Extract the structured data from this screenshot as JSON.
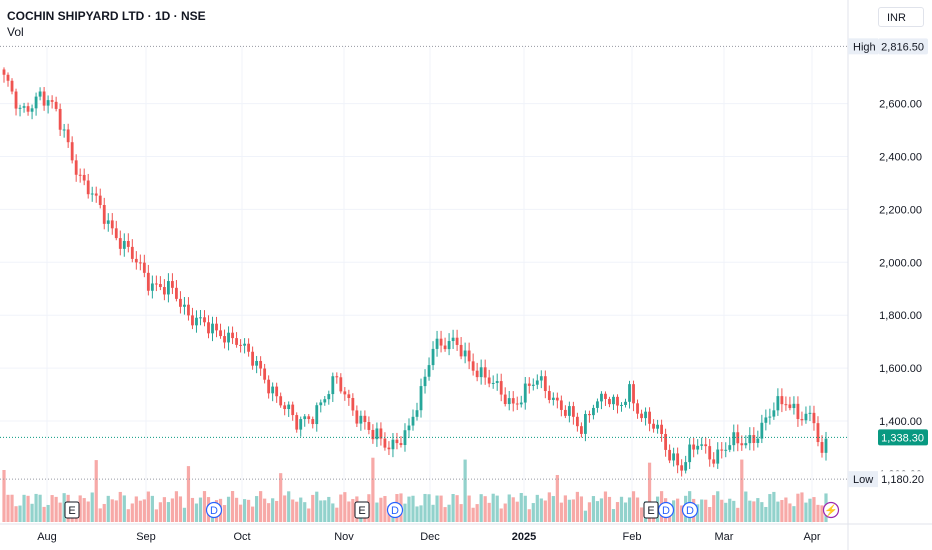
{
  "header": {
    "title": "COCHIN SHIPYARD LTD · 1D · NSE",
    "volume_label": "Vol",
    "currency": "INR"
  },
  "badges": {
    "high_label": "High",
    "high_value": "2,816.50",
    "low_label": "Low",
    "low_value": "1,180.20",
    "last_value": "1,338.30",
    "hidden_tick": "1,200.00"
  },
  "events": [
    {
      "letter": "E",
      "kind": "earnings",
      "month_pos": "Aug"
    },
    {
      "letter": "D",
      "kind": "dividend",
      "month_pos": "Sep"
    },
    {
      "letter": "E",
      "kind": "earnings",
      "month_pos": "Nov"
    },
    {
      "letter": "D",
      "kind": "dividend",
      "month_pos": "Nov"
    },
    {
      "letter": "D",
      "kind": "dividend",
      "month_pos": "Dec"
    },
    {
      "letter": "E",
      "kind": "earnings",
      "month_pos": "Feb"
    },
    {
      "letter": "D",
      "kind": "dividend",
      "month_pos": "Feb"
    },
    {
      "letter": "⚡",
      "kind": "split",
      "month_pos": "Apr"
    }
  ],
  "colors": {
    "up": "#26a69a",
    "down": "#ef5350",
    "up_volume": "#92d2cc",
    "down_volume": "#f7a9a7",
    "grid": "#f0f3fa",
    "dotted_line": "#9598a1",
    "last_price_badge": "#089981"
  },
  "chart_data": {
    "type": "candlestick",
    "title": "COCHIN SHIPYARD LTD · 1D · NSE",
    "x_tick_labels": [
      "Aug",
      "Sep",
      "Oct",
      "Nov",
      "Dec",
      "2025",
      "Feb",
      "Mar",
      "Apr"
    ],
    "y_tick_labels": [
      "1,400.00",
      "1,600.00",
      "1,800.00",
      "2,000.00",
      "2,200.00",
      "2,400.00",
      "2,600.00"
    ],
    "ylim": [
      1180,
      2816.5
    ],
    "high": 2816.5,
    "low": 1180.2,
    "last": 1338.3,
    "grid": true,
    "currency": "INR",
    "series": [
      {
        "name": "Vol",
        "values": []
      }
    ]
  }
}
